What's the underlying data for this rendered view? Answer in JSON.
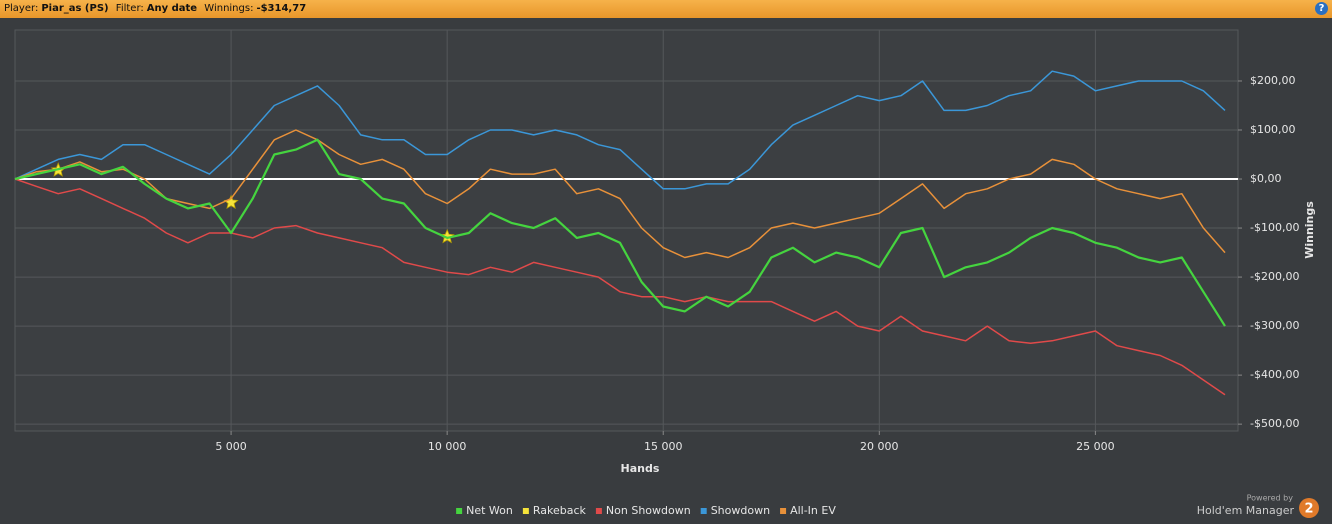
{
  "header": {
    "player_label": "Player:",
    "player": "Piar_as (PS)",
    "filter_label": "Filter:",
    "filter": "Any date",
    "winnings_label": "Winnings:",
    "winnings": "-$314,77"
  },
  "footer": {
    "powered_by": "Powered by",
    "product": "Hold'em Manager",
    "logo": "2"
  },
  "chart_data": {
    "type": "line",
    "xlabel": "Hands",
    "ylabel": "Winnings",
    "x": [
      0,
      500,
      1000,
      1500,
      2000,
      2500,
      3000,
      3500,
      4000,
      4500,
      5000,
      5500,
      6000,
      6500,
      7000,
      7500,
      8000,
      8500,
      9000,
      9500,
      10000,
      10500,
      11000,
      11500,
      12000,
      12500,
      13000,
      13500,
      14000,
      14500,
      15000,
      15500,
      16000,
      16500,
      17000,
      17500,
      18000,
      18500,
      19000,
      19500,
      20000,
      20500,
      21000,
      21500,
      22000,
      22500,
      23000,
      23500,
      24000,
      24500,
      25000,
      25500,
      26000,
      26500,
      27000,
      27500,
      28000
    ],
    "series": [
      {
        "name": "Net Won",
        "color": "#45d43f",
        "values": [
          0,
          10,
          20,
          30,
          10,
          25,
          -10,
          -40,
          -60,
          -50,
          -110,
          -40,
          50,
          60,
          80,
          10,
          0,
          -40,
          -50,
          -100,
          -120,
          -110,
          -70,
          -90,
          -100,
          -80,
          -120,
          -110,
          -130,
          -210,
          -260,
          -270,
          -240,
          -260,
          -230,
          -160,
          -140,
          -170,
          -150,
          -160,
          -180,
          -110,
          -100,
          -200,
          -180,
          -170,
          -150,
          -120,
          -100,
          -110,
          -130,
          -140,
          -160,
          -170,
          -160,
          -230,
          -300
        ]
      },
      {
        "name": "Rakeback",
        "color": "#f5e33a",
        "marker": "star",
        "values": [
          null,
          null,
          18,
          null,
          null,
          null,
          null,
          null,
          null,
          null,
          -48,
          null,
          null,
          null,
          null,
          null,
          null,
          null,
          null,
          null,
          -118,
          null,
          null,
          null,
          null,
          null,
          null,
          null,
          null,
          null,
          null,
          null,
          null,
          null,
          null,
          null,
          null,
          null,
          null,
          null,
          null,
          null,
          null,
          null,
          null,
          null,
          null,
          null,
          null,
          null,
          null,
          null,
          null,
          null,
          null,
          null,
          null
        ]
      },
      {
        "name": "Non Showdown",
        "color": "#e04a4a",
        "values": [
          0,
          -15,
          -30,
          -20,
          -40,
          -60,
          -80,
          -110,
          -130,
          -110,
          -110,
          -120,
          -100,
          -95,
          -110,
          -120,
          -130,
          -140,
          -170,
          -180,
          -190,
          -195,
          -180,
          -190,
          -170,
          -180,
          -190,
          -200,
          -230,
          -240,
          -240,
          -250,
          -240,
          -250,
          -250,
          -250,
          -270,
          -290,
          -270,
          -300,
          -310,
          -280,
          -310,
          -320,
          -330,
          -300,
          -330,
          -335,
          -330,
          -320,
          -310,
          -340,
          -350,
          -360,
          -380,
          -410,
          -440
        ]
      },
      {
        "name": "Showdown",
        "color": "#3b97d8",
        "values": [
          0,
          20,
          40,
          50,
          40,
          70,
          70,
          50,
          30,
          10,
          50,
          100,
          150,
          170,
          190,
          150,
          90,
          80,
          80,
          50,
          50,
          80,
          100,
          100,
          90,
          100,
          90,
          70,
          60,
          20,
          -20,
          -20,
          -10,
          -10,
          20,
          70,
          110,
          130,
          150,
          170,
          160,
          170,
          200,
          140,
          140,
          150,
          170,
          180,
          220,
          210,
          180,
          190,
          200,
          200,
          200,
          180,
          140
        ]
      },
      {
        "name": "All-In EV",
        "color": "#e8913a",
        "values": [
          0,
          15,
          20,
          35,
          15,
          20,
          0,
          -40,
          -50,
          -60,
          -40,
          20,
          80,
          100,
          80,
          50,
          30,
          40,
          20,
          -30,
          -50,
          -20,
          20,
          10,
          10,
          20,
          -30,
          -20,
          -40,
          -100,
          -140,
          -160,
          -150,
          -160,
          -140,
          -100,
          -90,
          -100,
          -90,
          -80,
          -70,
          -40,
          -10,
          -60,
          -30,
          -20,
          0,
          10,
          40,
          30,
          0,
          -20,
          -30,
          -40,
          -30,
          -100,
          -150
        ]
      }
    ],
    "xlim": [
      0,
      28300
    ],
    "xticks": [
      {
        "value": 5000,
        "label": "5 000"
      },
      {
        "value": 10000,
        "label": "10 000"
      },
      {
        "value": 15000,
        "label": "15 000"
      },
      {
        "value": 20000,
        "label": "20 000"
      },
      {
        "value": 25000,
        "label": "25 000"
      }
    ],
    "ylim": [
      -514,
      304
    ],
    "yticks": [
      {
        "value": -500,
        "label": "-$500,00"
      },
      {
        "value": -400,
        "label": "-$400,00"
      },
      {
        "value": -300,
        "label": "-$300,00"
      },
      {
        "value": -200,
        "label": "-$200,00"
      },
      {
        "value": -100,
        "label": "-$100,00"
      },
      {
        "value": 0,
        "label": "$0,00"
      },
      {
        "value": 100,
        "label": "$100,00"
      },
      {
        "value": 200,
        "label": "$200,00"
      }
    ],
    "grid": true,
    "legend": "bottom"
  }
}
